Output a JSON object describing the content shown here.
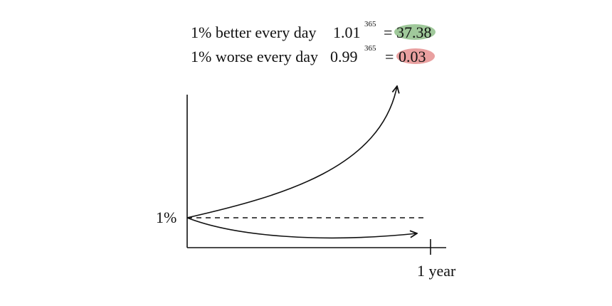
{
  "lines": [
    {
      "label": "1% better every day",
      "base": "1.01",
      "exponent": "365",
      "equals": "=",
      "result": "37.38"
    },
    {
      "label": "1% worse every day",
      "base": "0.99",
      "exponent": "365",
      "equals": "=",
      "result": "0.03"
    }
  ],
  "axis": {
    "y_label": "1%",
    "x_label": "1 year"
  }
}
